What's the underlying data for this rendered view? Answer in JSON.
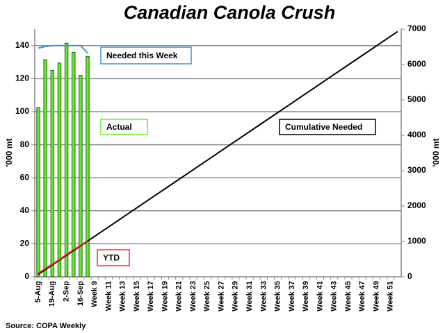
{
  "chart_data": {
    "type": "bar",
    "title": "Canadian Canola Crush",
    "ylabel": "'000 mt",
    "y2label": "'000 mt",
    "source": "Source: COPA Weekly",
    "categories": [
      "5-Aug",
      null,
      "19-Aug",
      null,
      "2-Sep",
      null,
      "16-Sep",
      null,
      "Week 9",
      null,
      "Week 11",
      null,
      "Week 13",
      null,
      "Week 15",
      null,
      "Week 17",
      null,
      "Week 19",
      null,
      "Week 21",
      null,
      "Week 23",
      null,
      "Week 25",
      null,
      "Week 27",
      null,
      "Week 29",
      null,
      "Week 31",
      null,
      "Week 33",
      null,
      "Week 35",
      null,
      "Week 37",
      null,
      "Week 39",
      null,
      "Week 41",
      null,
      "Week 43",
      null,
      "Week 45",
      null,
      "Week 47",
      null,
      "Week 49",
      null,
      "Week 51",
      null
    ],
    "ylim": [
      0,
      150
    ],
    "yticks": [
      0,
      20,
      40,
      60,
      80,
      100,
      120,
      140
    ],
    "y2lim": [
      0,
      7000
    ],
    "y2ticks": [
      0,
      1000,
      2000,
      3000,
      4000,
      5000,
      6000,
      7000
    ],
    "grid": true,
    "series": [
      {
        "name": "Actual",
        "type": "bar",
        "color": "#66ee33",
        "values": [
          102.5,
          131.5,
          125,
          129.5,
          141.5,
          136,
          122,
          133.5,
          null,
          null,
          null,
          null,
          null,
          null,
          null,
          null,
          null,
          null,
          null,
          null,
          null,
          null,
          null,
          null,
          null,
          null,
          null,
          null,
          null,
          null,
          null,
          null,
          null,
          null,
          null,
          null,
          null,
          null,
          null,
          null,
          null,
          null,
          null,
          null,
          null,
          null,
          null,
          null,
          null,
          null,
          null,
          null
        ]
      },
      {
        "name": "Needed this Week",
        "type": "line",
        "color": "#4a8fc9",
        "values": [
          138.5,
          139.5,
          140,
          140,
          140,
          140,
          140,
          135.5,
          null,
          null,
          null,
          null,
          null,
          null,
          null,
          null,
          null,
          null,
          null,
          null,
          null,
          null,
          null,
          null,
          null,
          null,
          null,
          null,
          null,
          null,
          null,
          null,
          null,
          null,
          null,
          null,
          null,
          null,
          null,
          null,
          null,
          null,
          null,
          null,
          null,
          null,
          null,
          null,
          null,
          null,
          null,
          null
        ]
      },
      {
        "name": "Cumulative Needed",
        "type": "line",
        "axis": "y2",
        "color": "#000000",
        "values": [
          67,
          202,
          337,
          471,
          606,
          740,
          875,
          1010,
          1144,
          1279,
          1413,
          1548,
          1683,
          1817,
          1952,
          2087,
          2221,
          2356,
          2490,
          2625,
          2760,
          2894,
          3029,
          3163,
          3298,
          3433,
          3567,
          3702,
          3837,
          3971,
          4106,
          4240,
          4375,
          4510,
          4644,
          4779,
          4913,
          5048,
          5183,
          5317,
          5452,
          5587,
          5721,
          5856,
          5990,
          6125,
          6260,
          6394,
          6529,
          6663,
          6798,
          6933
        ]
      },
      {
        "name": "YTD",
        "type": "line",
        "axis": "y2",
        "color": "#e8352a",
        "values": [
          102.5,
          234,
          359,
          488.5,
          630,
          766,
          888,
          1021.5,
          null,
          null,
          null,
          null,
          null,
          null,
          null,
          null,
          null,
          null,
          null,
          null,
          null,
          null,
          null,
          null,
          null,
          null,
          null,
          null,
          null,
          null,
          null,
          null,
          null,
          null,
          null,
          null,
          null,
          null,
          null,
          null,
          null,
          null,
          null,
          null,
          null,
          null,
          null,
          null,
          null,
          null,
          null,
          null
        ]
      }
    ]
  }
}
